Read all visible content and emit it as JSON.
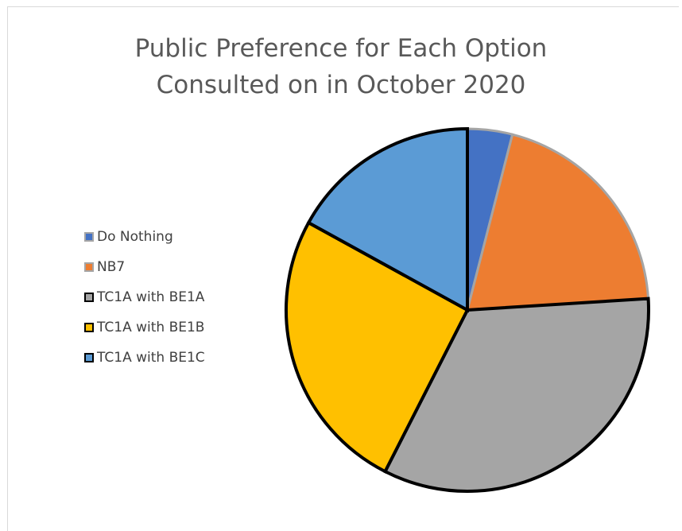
{
  "chart_data": {
    "type": "pie",
    "title": "Public Preference for Each Option Consulted on in October 2020",
    "title_lines": [
      "Public Preference for Each Option",
      "Consulted on in October 2020"
    ],
    "legend_position": "left",
    "slices": [
      {
        "label": "Do Nothing",
        "value": 4.0,
        "color": "#4472c4",
        "stroke": "#a5a5a5"
      },
      {
        "label": "NB7",
        "value": 20.0,
        "color": "#ed7d31",
        "stroke": "#a5a5a5"
      },
      {
        "label": "TC1A with BE1A",
        "value": 33.5,
        "color": "#a5a5a5",
        "stroke": "#000000"
      },
      {
        "label": "TC1A with BE1B",
        "value": 25.5,
        "color": "#ffc000",
        "stroke": "#000000"
      },
      {
        "label": "TC1A with BE1C",
        "value": 17.0,
        "color": "#5b9bd5",
        "stroke": "#000000"
      }
    ]
  }
}
